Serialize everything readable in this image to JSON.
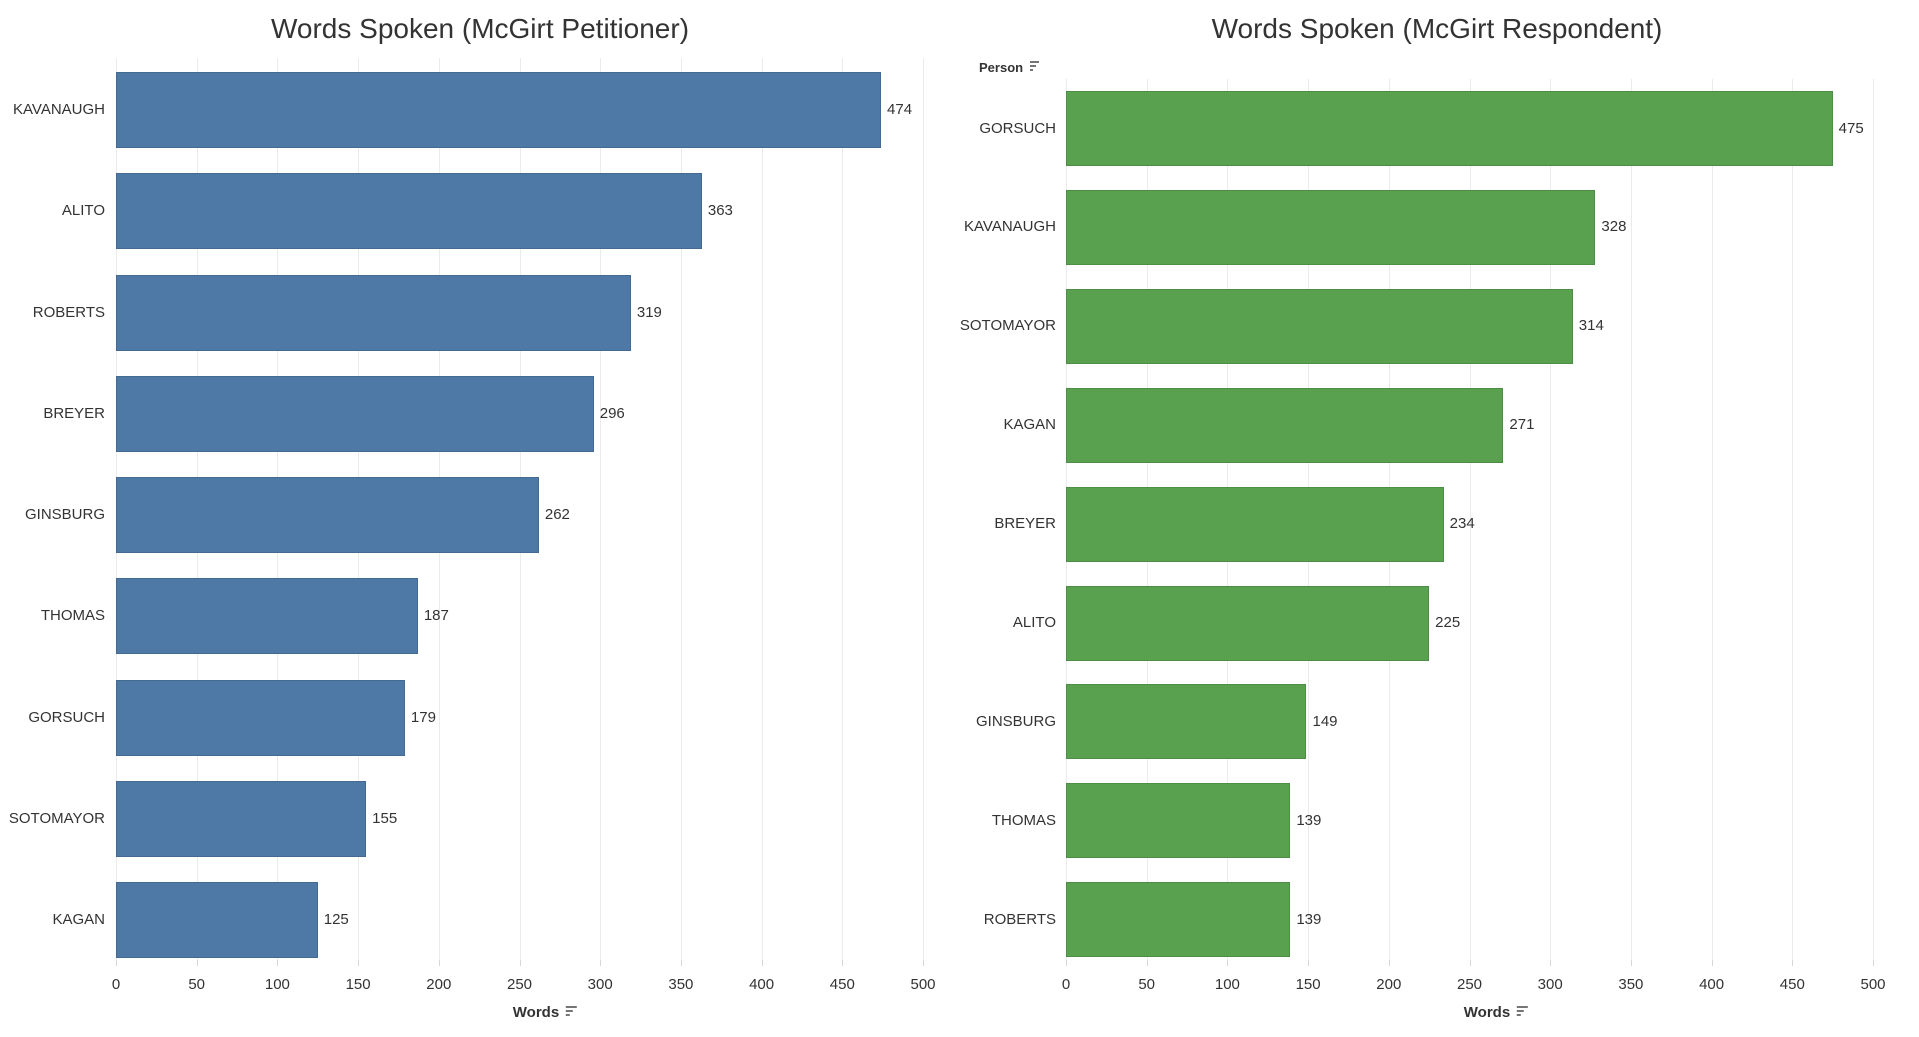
{
  "chart_data": [
    {
      "type": "bar",
      "orientation": "horizontal",
      "title": "Words Spoken (McGirt Petitioner)",
      "categories": [
        "KAVANAUGH",
        "ALITO",
        "ROBERTS",
        "BREYER",
        "GINSBURG",
        "THOMAS",
        "GORSUCH",
        "SOTOMAYOR",
        "KAGAN"
      ],
      "values": [
        474,
        363,
        319,
        296,
        262,
        187,
        179,
        155,
        125
      ],
      "xlabel": "Words",
      "row_field_label": "",
      "x_ticks": [
        0,
        50,
        100,
        150,
        200,
        250,
        300,
        350,
        400,
        450,
        500
      ],
      "xlim": [
        0,
        500
      ],
      "bar_color": "#4e79a7",
      "grid": true,
      "value_labels": true,
      "legend": "none",
      "sort": "descending"
    },
    {
      "type": "bar",
      "orientation": "horizontal",
      "title": "Words Spoken (McGirt Respondent)",
      "categories": [
        "GORSUCH",
        "KAVANAUGH",
        "SOTOMAYOR",
        "KAGAN",
        "BREYER",
        "ALITO",
        "GINSBURG",
        "THOMAS",
        "ROBERTS"
      ],
      "values": [
        475,
        328,
        314,
        271,
        234,
        225,
        149,
        139,
        139
      ],
      "xlabel": "Words",
      "row_field_label": "Person",
      "x_ticks": [
        0,
        50,
        100,
        150,
        200,
        250,
        300,
        350,
        400,
        450,
        500
      ],
      "xlim": [
        0,
        500
      ],
      "bar_color": "#59a14f",
      "grid": true,
      "value_labels": true,
      "legend": "none",
      "sort": "descending"
    }
  ],
  "colors": {
    "petitioner_bar": "#4e79a7",
    "respondent_bar": "#59a14f",
    "text": "#333333",
    "gridline": "#ebebeb"
  }
}
